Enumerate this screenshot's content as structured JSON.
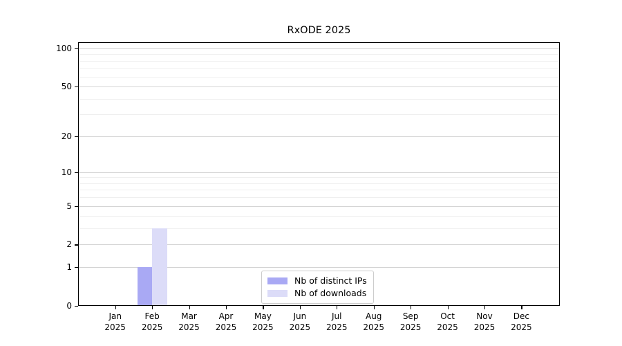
{
  "chart_data": {
    "type": "bar",
    "title": "RxODE 2025",
    "x": {
      "months": [
        "Jan",
        "Feb",
        "Mar",
        "Apr",
        "May",
        "Jun",
        "Jul",
        "Aug",
        "Sep",
        "Oct",
        "Nov",
        "Dec"
      ],
      "year": "2025"
    },
    "series": [
      {
        "key": "distinct-ips",
        "name": "Nb of distinct IPs",
        "color": "#a9a9f4",
        "values": [
          0,
          1,
          0,
          0,
          0,
          0,
          0,
          0,
          0,
          0,
          0,
          0
        ]
      },
      {
        "key": "downloads",
        "name": "Nb of downloads",
        "color": "#dcdcf8",
        "values": [
          0,
          3,
          0,
          0,
          0,
          0,
          0,
          0,
          0,
          0,
          0,
          0
        ]
      }
    ],
    "y_axis": {
      "scale": "log1p",
      "tick_values": [
        0,
        1,
        2,
        5,
        10,
        20,
        50,
        100
      ],
      "tick_labels": [
        "0",
        "1",
        "2",
        "5",
        "10",
        "20",
        "50",
        "100"
      ],
      "minor_grid_values": [
        3,
        4,
        6,
        7,
        8,
        9,
        30,
        40,
        60,
        70,
        80,
        90
      ],
      "range_max": 111
    },
    "legend_position": "lower center inside",
    "colors": {
      "major_grid": "#d4d4d4",
      "minor_grid": "#efefef",
      "axis": "#000000",
      "background": "#ffffff"
    }
  }
}
